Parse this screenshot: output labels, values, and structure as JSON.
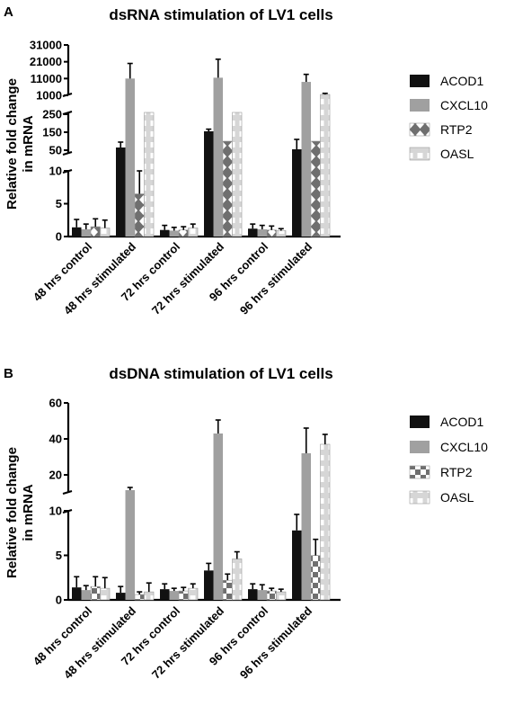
{
  "panels": [
    {
      "letter": "A",
      "chart_data": {
        "type": "bar",
        "title": "dsRNA stimulation of LV1 cells",
        "ylabel_lines": [
          "Relative fold change",
          "in mRNA"
        ],
        "xlabel": "",
        "categories": [
          "48 hrs control",
          "48 hrs stimulated",
          "72 hrs control",
          "72 hrs stimulated",
          "96 hrs control",
          "96 hrs stimulated"
        ],
        "axis_segments": [
          {
            "range": [
              0,
              10
            ],
            "ticks": [
              0,
              5,
              10
            ]
          },
          {
            "range": [
              30,
              260
            ],
            "ticks": [
              50,
              150,
              250
            ]
          },
          {
            "range": [
              1000,
              31000
            ],
            "ticks": [
              1000,
              11000,
              21000,
              31000
            ]
          }
        ],
        "legend": {
          "placement": "right"
        },
        "series": [
          {
            "name": "ACOD1",
            "color": "#111111",
            "pattern": "solid",
            "values": [
              1.4,
              65,
              1.0,
              155,
              1.2,
              55
            ],
            "errors": [
              1.2,
              30,
              0.7,
              12,
              0.7,
              55
            ]
          },
          {
            "name": "CXCL10",
            "color": "#a0a0a0",
            "pattern": "solid",
            "values": [
              1.1,
              11000,
              0.9,
              11500,
              1.1,
              9000
            ],
            "errors": [
              0.8,
              9000,
              0.5,
              11000,
              0.6,
              4500
            ]
          },
          {
            "name": "RTP2",
            "color": "#7a7a7a",
            "pattern": "diamond",
            "values": [
              1.5,
              6.5,
              1.0,
              100,
              1.0,
              100
            ],
            "errors": [
              1.2,
              3.5,
              0.5,
              0,
              0.6,
              0
            ]
          },
          {
            "name": "OASL",
            "color": "#d9d9d9",
            "pattern": "dash",
            "values": [
              1.3,
              600,
              1.3,
              700,
              0.9,
              1500
            ],
            "errors": [
              1.2,
              0,
              0.6,
              0,
              0.3,
              700
            ]
          }
        ]
      }
    },
    {
      "letter": "B",
      "chart_data": {
        "type": "bar",
        "title": "dsDNA stimulation of LV1 cells",
        "ylabel_lines": [
          "Relative fold change",
          "in mRNA"
        ],
        "xlabel": "",
        "categories": [
          "48 hrs control",
          "48 hrs stimulated",
          "72 hrs control",
          "72 hrs stimulated",
          "96 hrs control",
          "96 hrs stimulated"
        ],
        "axis_segments": [
          {
            "range": [
              0,
              10
            ],
            "ticks": [
              0,
              5,
              10
            ]
          },
          {
            "range": [
              10,
              60
            ],
            "ticks": [
              20,
              40,
              60
            ]
          }
        ],
        "legend": {
          "placement": "right"
        },
        "series": [
          {
            "name": "ACOD1",
            "color": "#111111",
            "pattern": "solid",
            "values": [
              1.4,
              0.8,
              1.2,
              3.3,
              1.2,
              7.8
            ],
            "errors": [
              1.2,
              0.7,
              0.6,
              0.8,
              0.6,
              1.8
            ]
          },
          {
            "name": "CXCL10",
            "color": "#a0a0a0",
            "pattern": "solid",
            "values": [
              1.1,
              11.5,
              1.0,
              43,
              1.1,
              32
            ],
            "errors": [
              0.5,
              1.5,
              0.3,
              7.5,
              0.6,
              14
            ]
          },
          {
            "name": "RTP2",
            "color": "#7a7a7a",
            "pattern": "check",
            "values": [
              1.5,
              0.6,
              1.0,
              2.2,
              1.0,
              5.0
            ],
            "errors": [
              1.1,
              0.3,
              0.4,
              0.7,
              0.3,
              1.8
            ]
          },
          {
            "name": "OASL",
            "color": "#d9d9d9",
            "pattern": "dash",
            "values": [
              1.3,
              0.9,
              1.3,
              4.6,
              0.9,
              37
            ],
            "errors": [
              1.2,
              1.0,
              0.5,
              0.8,
              0.3,
              5.5
            ]
          }
        ]
      }
    }
  ]
}
